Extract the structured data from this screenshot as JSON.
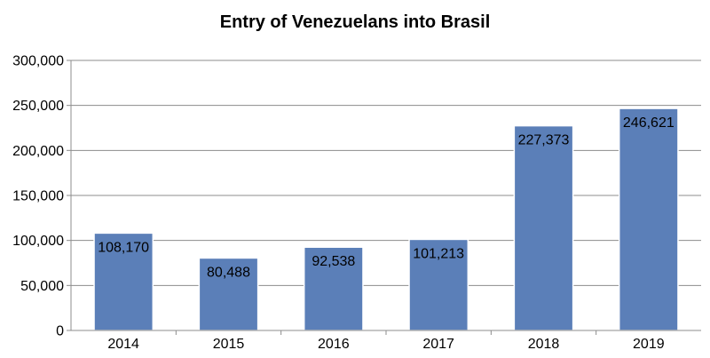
{
  "chart_data": {
    "type": "bar",
    "title": "Entry of Venezuelans into Brasil",
    "categories": [
      "2014",
      "2015",
      "2016",
      "2017",
      "2018",
      "2019"
    ],
    "values": [
      108170,
      80488,
      92538,
      101213,
      227373,
      246621
    ],
    "data_labels": [
      "108,170",
      "80,488",
      "92,538",
      "101,213",
      "227,373",
      "246,621"
    ],
    "ylim": [
      0,
      300000
    ],
    "yticks": [
      0,
      50000,
      100000,
      150000,
      200000,
      250000,
      300000
    ],
    "ytick_labels": [
      "0",
      "50,000",
      "100,000",
      "150,000",
      "200,000",
      "250,000",
      "300,000"
    ],
    "xlabel": "",
    "ylabel": "",
    "grid": true,
    "legend": "none",
    "bar_color": "#5b7fb8"
  }
}
